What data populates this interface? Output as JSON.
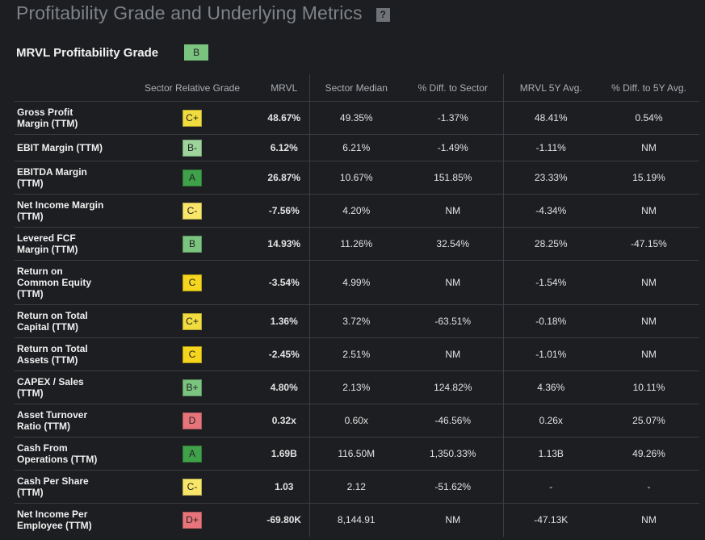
{
  "header": {
    "title": "Profitability Grade and Underlying Metrics",
    "help_icon": "question-icon",
    "help_label": "?"
  },
  "summary": {
    "label": "MRVL Profitability Grade",
    "grade": "B",
    "grade_color": "#7bc47f"
  },
  "grade_colors": {
    "A": "#3fa24a",
    "B": "#7bc47f",
    "B+": "#7bc47f",
    "B-": "#9ed49c",
    "C+": "#f1dc3f",
    "C": "#f5d51d",
    "C-": "#f8e66a",
    "D": "#e7747a",
    "D+": "#e7747a"
  },
  "table": {
    "columns": [
      "",
      "Sector Relative Grade",
      "MRVL",
      "Sector Median",
      "% Diff. to Sector",
      "MRVL 5Y Avg.",
      "% Diff. to 5Y Avg."
    ],
    "rows": [
      {
        "metric": [
          "Gross Profit",
          "Margin (TTM)"
        ],
        "grade": "C+",
        "mrvl": "48.67%",
        "sector_median": "49.35%",
        "diff_sector": "-1.37%",
        "avg_5y": "48.41%",
        "diff_5y": "0.54%"
      },
      {
        "metric": [
          "EBIT Margin (TTM)"
        ],
        "grade": "B-",
        "mrvl": "6.12%",
        "sector_median": "6.21%",
        "diff_sector": "-1.49%",
        "avg_5y": "-1.11%",
        "diff_5y": "NM"
      },
      {
        "metric": [
          "EBITDA Margin",
          "(TTM)"
        ],
        "grade": "A",
        "mrvl": "26.87%",
        "sector_median": "10.67%",
        "diff_sector": "151.85%",
        "avg_5y": "23.33%",
        "diff_5y": "15.19%"
      },
      {
        "metric": [
          "Net Income Margin",
          "(TTM)"
        ],
        "grade": "C-",
        "mrvl": "-7.56%",
        "sector_median": "4.20%",
        "diff_sector": "NM",
        "avg_5y": "-4.34%",
        "diff_5y": "NM"
      },
      {
        "metric": [
          "Levered FCF",
          "Margin (TTM)"
        ],
        "grade": "B",
        "mrvl": "14.93%",
        "sector_median": "11.26%",
        "diff_sector": "32.54%",
        "avg_5y": "28.25%",
        "diff_5y": "-47.15%"
      },
      {
        "metric": [
          "Return on",
          "Common Equity",
          "(TTM)"
        ],
        "grade": "C",
        "mrvl": "-3.54%",
        "sector_median": "4.99%",
        "diff_sector": "NM",
        "avg_5y": "-1.54%",
        "diff_5y": "NM"
      },
      {
        "metric": [
          "Return on Total",
          "Capital (TTM)"
        ],
        "grade": "C+",
        "mrvl": "1.36%",
        "sector_median": "3.72%",
        "diff_sector": "-63.51%",
        "avg_5y": "-0.18%",
        "diff_5y": "NM"
      },
      {
        "metric": [
          "Return on Total",
          "Assets (TTM)"
        ],
        "grade": "C",
        "mrvl": "-2.45%",
        "sector_median": "2.51%",
        "diff_sector": "NM",
        "avg_5y": "-1.01%",
        "diff_5y": "NM"
      },
      {
        "metric": [
          "CAPEX / Sales",
          "(TTM)"
        ],
        "grade": "B+",
        "mrvl": "4.80%",
        "sector_median": "2.13%",
        "diff_sector": "124.82%",
        "avg_5y": "4.36%",
        "diff_5y": "10.11%"
      },
      {
        "metric": [
          "Asset Turnover",
          "Ratio (TTM)"
        ],
        "grade": "D",
        "mrvl": "0.32x",
        "sector_median": "0.60x",
        "diff_sector": "-46.56%",
        "avg_5y": "0.26x",
        "diff_5y": "25.07%"
      },
      {
        "metric": [
          "Cash From",
          "Operations (TTM)"
        ],
        "grade": "A",
        "mrvl": "1.69B",
        "sector_median": "116.50M",
        "diff_sector": "1,350.33%",
        "avg_5y": "1.13B",
        "diff_5y": "49.26%"
      },
      {
        "metric": [
          "Cash Per Share",
          "(TTM)"
        ],
        "grade": "C-",
        "mrvl": "1.03",
        "sector_median": "2.12",
        "diff_sector": "-51.62%",
        "avg_5y": "-",
        "diff_5y": "-"
      },
      {
        "metric": [
          "Net Income Per",
          "Employee (TTM)"
        ],
        "grade": "D+",
        "mrvl": "-69.80K",
        "sector_median": "8,144.91",
        "diff_sector": "NM",
        "avg_5y": "-47.13K",
        "diff_5y": "NM"
      }
    ]
  }
}
